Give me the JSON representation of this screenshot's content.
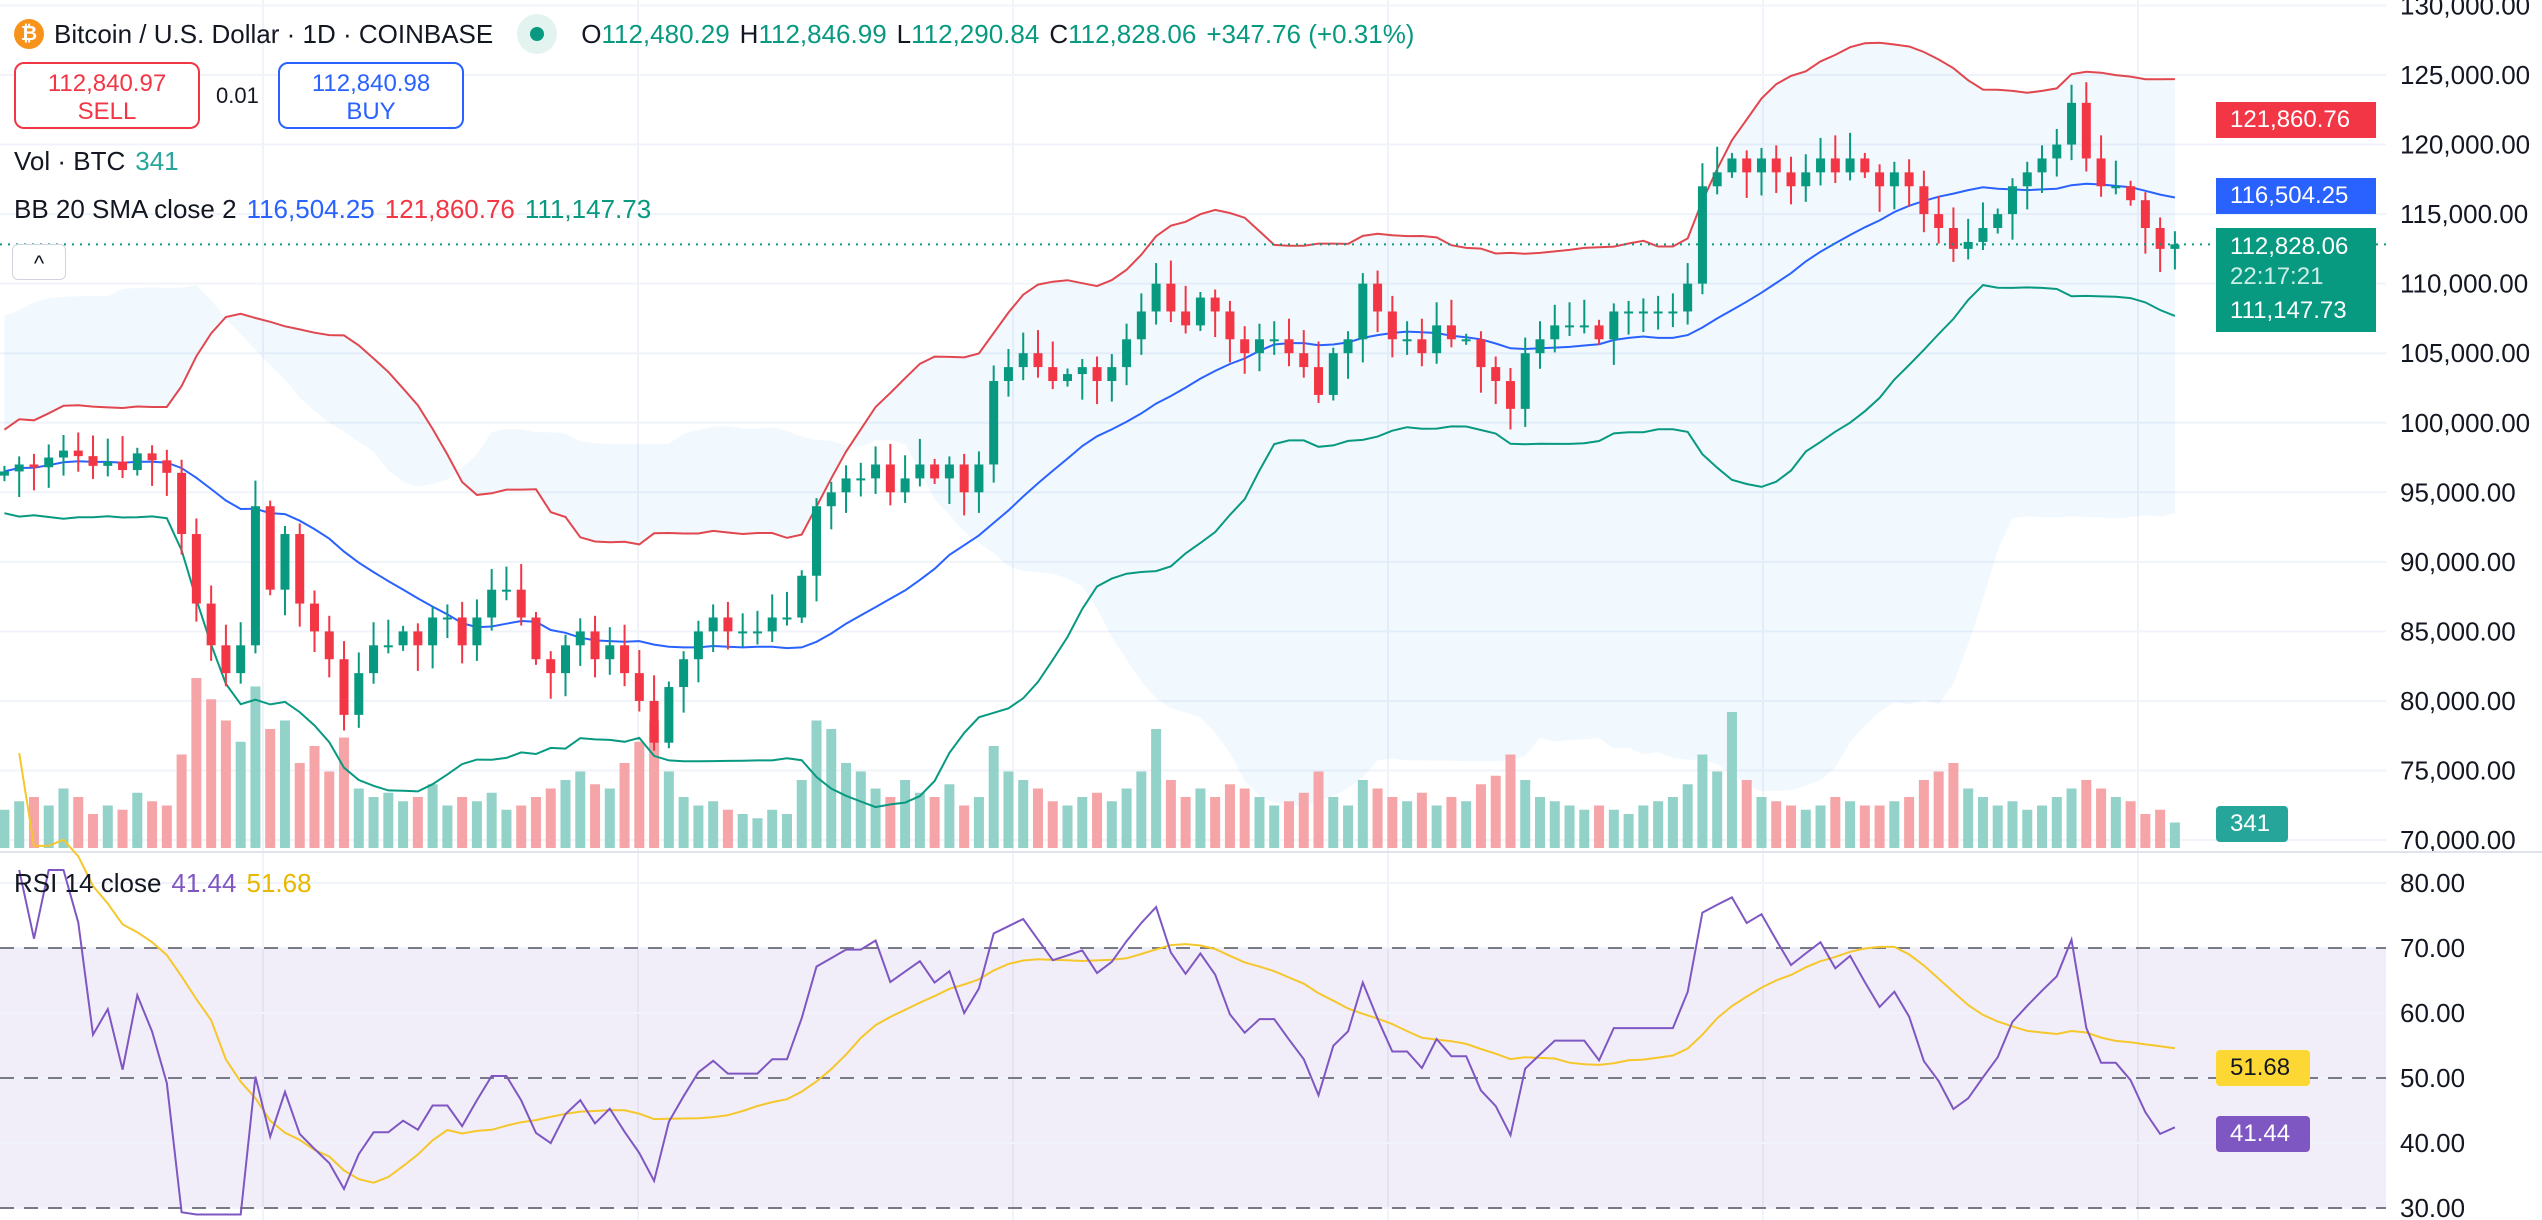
{
  "header": {
    "symbol": "Bitcoin / U.S. Dollar · 1D · COINBASE",
    "icon": "bitcoin-icon",
    "o_label": "O",
    "o": "112,480.29",
    "h_label": "H",
    "h": "112,846.99",
    "l_label": "L",
    "l": "112,290.84",
    "c_label": "C",
    "c": "112,828.06",
    "change": "+347.76 (+0.31%)"
  },
  "trade": {
    "sell_price": "112,840.97",
    "sell_label": "SELL",
    "spread": "0.01",
    "buy_price": "112,840.98",
    "buy_label": "BUY"
  },
  "volume_legend": {
    "label": "Vol · BTC",
    "value": "341"
  },
  "bb_legend": {
    "label": "BB 20 SMA close 2",
    "basis": "116,504.25",
    "upper": "121,860.76",
    "lower": "111,147.73"
  },
  "rsi_legend": {
    "label": "RSI 14 close",
    "rsi": "41.44",
    "ma": "51.68"
  },
  "collapse_label": "^",
  "price_tags": {
    "upper": "121,860.76",
    "basis": "116,504.25",
    "last": "112,828.06",
    "countdown": "22:17:21",
    "lower": "111,147.73",
    "volume": "341",
    "rsi": "41.44",
    "rsi_ma": "51.68"
  },
  "colors": {
    "up": "#089981",
    "down": "#f23645",
    "bb_upper": "#e0474f",
    "bb_basis": "#2962ff",
    "bb_lower": "#089981",
    "rsi": "#7e57c2",
    "rsi_ma": "#f5c72c"
  },
  "chart_data": {
    "type": "candlestick",
    "price_axis": {
      "ticks": [
        "130,000.00",
        "125,000.00",
        "120,000.00",
        "115,000.00",
        "110,000.00",
        "105,000.00",
        "100,000.00",
        "95,000.00",
        "90,000.00",
        "85,000.00",
        "80,000.00",
        "75,000.00",
        "70,000.00"
      ],
      "range": [
        70000,
        130000
      ]
    },
    "rsi_axis": {
      "ticks": [
        "80.00",
        "70.00",
        "60.00",
        "50.00",
        "40.00",
        "30.00"
      ],
      "range": [
        28,
        83
      ],
      "bands": [
        70,
        50,
        30
      ]
    },
    "close": [
      96500,
      97000,
      96800,
      97500,
      98000,
      97600,
      96900,
      97200,
      96600,
      97800,
      97300,
      96400,
      92000,
      87000,
      84000,
      82000,
      84000,
      94000,
      88000,
      92000,
      87000,
      85000,
      83000,
      79000,
      82000,
      84000,
      84000,
      85000,
      84000,
      86000,
      86000,
      84000,
      86000,
      88000,
      88000,
      86000,
      83000,
      82000,
      84000,
      85000,
      83000,
      84000,
      82000,
      80000,
      77000,
      81000,
      83000,
      85000,
      86000,
      85000,
      85000,
      85000,
      86000,
      86000,
      89000,
      94000,
      95000,
      96000,
      96000,
      97000,
      95000,
      96000,
      97000,
      96000,
      97000,
      95000,
      97000,
      103000,
      104000,
      105000,
      104000,
      103000,
      103500,
      104000,
      103000,
      104000,
      106000,
      108000,
      110000,
      108000,
      107000,
      109000,
      108000,
      106000,
      105000,
      106000,
      106000,
      105000,
      104000,
      102000,
      105000,
      106000,
      110000,
      108000,
      106000,
      106000,
      105000,
      107000,
      106000,
      106000,
      104000,
      103000,
      101000,
      105000,
      106000,
      107000,
      107000,
      107000,
      106000,
      108000,
      108000,
      108000,
      108000,
      108000,
      110000,
      117000,
      118000,
      119000,
      118000,
      119000,
      118000,
      117000,
      118000,
      119000,
      118000,
      119000,
      118000,
      117000,
      118000,
      117000,
      115000,
      114000,
      112500,
      113000,
      114000,
      115000,
      117000,
      118000,
      119000,
      120000,
      123000,
      119000,
      117000,
      117000,
      116000,
      114000,
      112500,
      112828
    ],
    "volume": [
      9,
      11,
      12,
      10,
      14,
      12,
      8,
      10,
      9,
      13,
      11,
      10,
      22,
      40,
      35,
      30,
      25,
      38,
      28,
      30,
      20,
      24,
      18,
      26,
      14,
      12,
      13,
      11,
      12,
      15,
      10,
      12,
      11,
      13,
      9,
      10,
      12,
      14,
      16,
      18,
      15,
      14,
      20,
      25,
      30,
      18,
      12,
      10,
      11,
      9,
      8,
      7,
      9,
      8,
      16,
      30,
      28,
      20,
      18,
      14,
      12,
      16,
      13,
      12,
      15,
      10,
      12,
      24,
      18,
      16,
      14,
      11,
      10,
      12,
      13,
      11,
      14,
      18,
      28,
      16,
      12,
      14,
      12,
      15,
      14,
      12,
      10,
      11,
      13,
      18,
      12,
      10,
      16,
      14,
      12,
      11,
      13,
      10,
      12,
      11,
      15,
      17,
      22,
      16,
      12,
      11,
      10,
      9,
      10,
      9,
      8,
      10,
      11,
      12,
      15,
      22,
      18,
      32,
      16,
      12,
      11,
      10,
      9,
      10,
      12,
      11,
      10,
      10,
      11,
      12,
      16,
      18,
      20,
      14,
      12,
      10,
      11,
      9,
      10,
      12,
      14,
      16,
      14,
      12,
      11,
      8,
      9,
      6
    ]
  }
}
